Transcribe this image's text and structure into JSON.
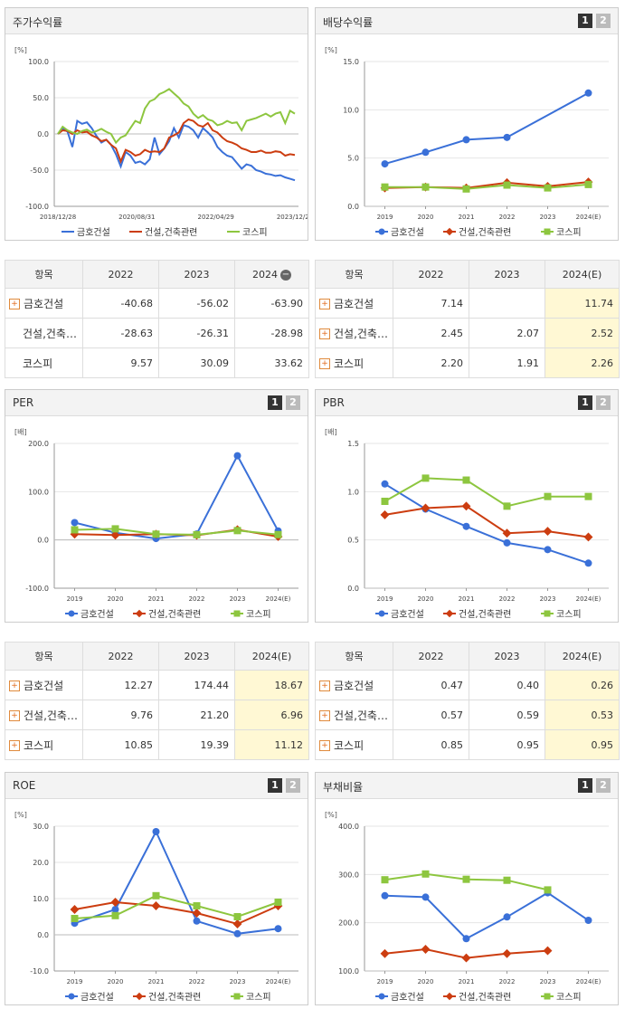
{
  "panels": [
    {
      "title": "주가수익률",
      "unit": "[%]",
      "pager": false,
      "chart_data": {
        "type": "line",
        "ylim": [
          -100,
          100
        ],
        "yticks": [
          "100.0",
          "50.0",
          "0.0",
          "-50.0",
          "-100.0"
        ],
        "x_labels": [
          "2018/12/28",
          "2020/08/31",
          "2022/04/29",
          "2023/12/28"
        ],
        "series": [
          {
            "name": "금호건설",
            "color": "#3a70d8",
            "values": [
              0,
              8,
              3,
              -18,
              18,
              14,
              16,
              8,
              -3,
              -12,
              -8,
              -15,
              -28,
              -45,
              -25,
              -30,
              -40,
              -38,
              -42,
              -35,
              -5,
              -28,
              -20,
              -10,
              8,
              -5,
              12,
              10,
              5,
              -5,
              8,
              2,
              -5,
              -18,
              -25,
              -30,
              -32,
              -40,
              -48,
              -42,
              -44,
              -50,
              -52,
              -55,
              -56,
              -58,
              -57,
              -60,
              -62,
              -64
            ]
          },
          {
            "name": "건설,건축관련",
            "color": "#cc3d10",
            "values": [
              0,
              5,
              4,
              0,
              5,
              2,
              3,
              -2,
              -5,
              -10,
              -8,
              -15,
              -20,
              -38,
              -22,
              -25,
              -30,
              -28,
              -22,
              -25,
              -24,
              -25,
              -20,
              -5,
              -2,
              2,
              15,
              20,
              18,
              12,
              10,
              15,
              5,
              2,
              -5,
              -10,
              -12,
              -15,
              -20,
              -22,
              -25,
              -25,
              -23,
              -26,
              -26,
              -24,
              -25,
              -30,
              -28,
              -29
            ]
          },
          {
            "name": "코스피",
            "color": "#8dc63f",
            "values": [
              0,
              10,
              5,
              2,
              0,
              4,
              6,
              2,
              4,
              7,
              3,
              0,
              -12,
              -5,
              -2,
              8,
              18,
              15,
              35,
              45,
              48,
              55,
              58,
              62,
              56,
              50,
              42,
              38,
              28,
              22,
              26,
              20,
              18,
              12,
              14,
              18,
              15,
              16,
              5,
              18,
              20,
              22,
              25,
              28,
              24,
              28,
              30,
              15,
              32,
              28
            ]
          }
        ]
      }
    },
    {
      "title": "배당수익률",
      "unit": "[%]",
      "pager": true,
      "chart_data": {
        "type": "line",
        "ylim": [
          0,
          15
        ],
        "yticks": [
          "15.0",
          "10.0",
          "5.0",
          "0.0"
        ],
        "categories": [
          "2019",
          "2020",
          "2021",
          "2022",
          "2023",
          "2024(E)"
        ],
        "series": [
          {
            "name": "금호건설",
            "color": "#3a70d8",
            "values": [
              4.4,
              5.6,
              6.9,
              7.14,
              null,
              11.74
            ]
          },
          {
            "name": "건설,건축관련",
            "color": "#cc3d10",
            "values": [
              1.9,
              2.0,
              1.9,
              2.45,
              2.07,
              2.52
            ]
          },
          {
            "name": "코스피",
            "color": "#8dc63f",
            "values": [
              2.0,
              2.0,
              1.8,
              2.2,
              1.91,
              2.26
            ]
          }
        ]
      }
    },
    {
      "title": "PER",
      "unit": "[배]",
      "pager": true,
      "chart_data": {
        "type": "line",
        "ylim": [
          -100,
          200
        ],
        "yticks": [
          "200.0",
          "100.0",
          "0.0",
          "-100.0"
        ],
        "categories": [
          "2019",
          "2020",
          "2021",
          "2022",
          "2023",
          "2024(E)"
        ],
        "series": [
          {
            "name": "금호건설",
            "color": "#3a70d8",
            "values": [
              36,
              15,
              3,
              12.27,
              174.44,
              18.67
            ]
          },
          {
            "name": "건설,건축관련",
            "color": "#cc3d10",
            "values": [
              12,
              10,
              12,
              9.76,
              21.2,
              6.96
            ]
          },
          {
            "name": "코스피",
            "color": "#8dc63f",
            "values": [
              21,
              23,
              12,
              10.85,
              19.39,
              11.12
            ]
          }
        ]
      }
    },
    {
      "title": "PBR",
      "unit": "[배]",
      "pager": true,
      "chart_data": {
        "type": "line",
        "ylim": [
          0,
          1.5
        ],
        "yticks": [
          "1.5",
          "1.0",
          "0.5",
          "0.0"
        ],
        "categories": [
          "2019",
          "2020",
          "2021",
          "2022",
          "2023",
          "2024(E)"
        ],
        "series": [
          {
            "name": "금호건설",
            "color": "#3a70d8",
            "values": [
              1.08,
              0.82,
              0.64,
              0.47,
              0.4,
              0.26
            ]
          },
          {
            "name": "건설,건축관련",
            "color": "#cc3d10",
            "values": [
              0.76,
              0.83,
              0.85,
              0.57,
              0.59,
              0.53
            ]
          },
          {
            "name": "코스피",
            "color": "#8dc63f",
            "values": [
              0.9,
              1.14,
              1.12,
              0.85,
              0.95,
              0.95
            ]
          }
        ]
      }
    },
    {
      "title": "ROE",
      "unit": "[%]",
      "pager": true,
      "chart_data": {
        "type": "line",
        "ylim": [
          -10,
          30
        ],
        "yticks": [
          "30.0",
          "20.0",
          "10.0",
          "0.0",
          "-10.0"
        ],
        "categories": [
          "2019",
          "2020",
          "2021",
          "2022",
          "2023",
          "2024(E)"
        ],
        "series": [
          {
            "name": "금호건설",
            "color": "#3a70d8",
            "values": [
              3.2,
              7.0,
              28.5,
              3.8,
              0.3,
              1.7
            ]
          },
          {
            "name": "건설,건축관련",
            "color": "#cc3d10",
            "values": [
              7.0,
              9.0,
              8.0,
              6.0,
              3.0,
              8.0
            ]
          },
          {
            "name": "코스피",
            "color": "#8dc63f",
            "values": [
              4.5,
              5.3,
              10.8,
              8.0,
              5.0,
              9.0
            ]
          }
        ]
      }
    },
    {
      "title": "부채비율",
      "unit": "[%]",
      "pager": true,
      "chart_data": {
        "type": "line",
        "ylim": [
          100,
          400
        ],
        "yticks": [
          "400.0",
          "300.0",
          "200.0",
          "100.0"
        ],
        "categories": [
          "2019",
          "2020",
          "2021",
          "2022",
          "2023",
          "2024(E)"
        ],
        "series": [
          {
            "name": "금호건설",
            "color": "#3a70d8",
            "values": [
              256,
              253,
              167,
              212,
              262,
              205
            ]
          },
          {
            "name": "건설,건축관련",
            "color": "#cc3d10",
            "values": [
              136,
              145,
              127,
              136,
              142,
              null
            ]
          },
          {
            "name": "코스피",
            "color": "#8dc63f",
            "values": [
              289,
              301,
              290,
              288,
              268,
              null
            ]
          }
        ]
      }
    }
  ],
  "tables": [
    {
      "header": [
        "항목",
        "2022",
        "2023",
        "2024"
      ],
      "minus": true,
      "hl_last": false,
      "rows": [
        {
          "name": "금호건설",
          "plus": true,
          "vals": [
            "-40.68",
            "-56.02",
            "-63.90"
          ]
        },
        {
          "name": "건설,건축…",
          "plus": false,
          "vals": [
            "-28.63",
            "-26.31",
            "-28.98"
          ]
        },
        {
          "name": "코스피",
          "plus": false,
          "vals": [
            "9.57",
            "30.09",
            "33.62"
          ]
        }
      ]
    },
    {
      "header": [
        "항목",
        "2022",
        "2023",
        "2024(E)"
      ],
      "minus": false,
      "hl_last": true,
      "rows": [
        {
          "name": "금호건설",
          "plus": true,
          "vals": [
            "7.14",
            "",
            "11.74"
          ]
        },
        {
          "name": "건설,건축…",
          "plus": true,
          "vals": [
            "2.45",
            "2.07",
            "2.52"
          ]
        },
        {
          "name": "코스피",
          "plus": true,
          "vals": [
            "2.20",
            "1.91",
            "2.26"
          ]
        }
      ]
    },
    {
      "header": [
        "항목",
        "2022",
        "2023",
        "2024(E)"
      ],
      "minus": false,
      "hl_last": true,
      "rows": [
        {
          "name": "금호건설",
          "plus": true,
          "vals": [
            "12.27",
            "174.44",
            "18.67"
          ]
        },
        {
          "name": "건설,건축…",
          "plus": true,
          "vals": [
            "9.76",
            "21.20",
            "6.96"
          ]
        },
        {
          "name": "코스피",
          "plus": true,
          "vals": [
            "10.85",
            "19.39",
            "11.12"
          ]
        }
      ]
    },
    {
      "header": [
        "항목",
        "2022",
        "2023",
        "2024(E)"
      ],
      "minus": false,
      "hl_last": true,
      "rows": [
        {
          "name": "금호건설",
          "plus": true,
          "vals": [
            "0.47",
            "0.40",
            "0.26"
          ]
        },
        {
          "name": "건설,건축…",
          "plus": true,
          "vals": [
            "0.57",
            "0.59",
            "0.53"
          ]
        },
        {
          "name": "코스피",
          "plus": true,
          "vals": [
            "0.85",
            "0.95",
            "0.95"
          ]
        }
      ]
    }
  ],
  "pager_labels": [
    "1",
    "2"
  ],
  "icons": {
    "plus": "+",
    "minus": "−"
  }
}
